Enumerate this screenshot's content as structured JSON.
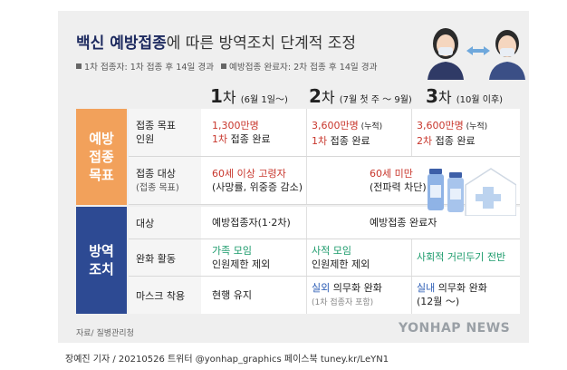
{
  "title": {
    "bold": "백신 예방접종",
    "rest": "에 따른 방역조치 단계적 조정"
  },
  "notes": [
    "1차 접종자: 1차 접종 후 14일 경과",
    "예방접종 완료자: 2차 접종 후 14일 경과"
  ],
  "phases": [
    {
      "big": "1",
      "suffix": "차",
      "period": "(6월 1일～)"
    },
    {
      "big": "2",
      "suffix": "차",
      "period": "(7월 첫 주 ～ 9월)"
    },
    {
      "big": "3",
      "suffix": "차",
      "period": "(10월 이후)"
    }
  ],
  "categories": {
    "vaccination_goal": "예방\n접종\n목표",
    "quarantine": "방역\n조치"
  },
  "rows": {
    "goal": {
      "label": "접종 목표\n인원",
      "p1_a": "1,300만명",
      "p1_b": "1차",
      "p1_c": " 접종 완료",
      "p2_a": "3,600만명",
      "p2_a2": " (누적)",
      "p2_b": "1차",
      "p2_c": " 접종 완료",
      "p3_a": "3,600만명",
      "p3_a2": " (누적)",
      "p3_b": "2차",
      "p3_c": " 접종 완료"
    },
    "target": {
      "label": "접종 대상",
      "sub": "(접종 목표)",
      "p1_a": "60세 이상 고령자",
      "p1_b": "(사망률, 위중증 감소)",
      "p23_a": "60세 미만",
      "p23_b": "(전파력 차단)"
    },
    "subject": {
      "label": "대상",
      "p1": "예방접종자(1·2차)",
      "p23": "예방접종 완료자"
    },
    "relief": {
      "label": "완화 활동",
      "p1_a": "가족 모임",
      "p1_b": "인원제한 제외",
      "p2_a": "사적 모임",
      "p2_b": "인원제한 제외",
      "p3_a": "사회적 거리두기 전반"
    },
    "mask": {
      "label": "마스크 착용",
      "p1": "현행 유지",
      "p2_a": "실외",
      "p2_b": " 의무화 완화",
      "p2_c": "(1차 접종자 포함)",
      "p3_a": "실내",
      "p3_b": " 의무화 완화",
      "p3_c": "(12월 ～)"
    }
  },
  "source": "자료/ 질병관리청",
  "byline": "장예진 기자 / 20210526 트위터 @yonhap_graphics  페이스북 tuney.kr/LeYN1",
  "watermark": "YONHAP NEWS",
  "colors": {
    "orange": "#f2a15b",
    "navy": "#2d4a93",
    "red": "#c8372d",
    "green": "#1a9a6a"
  }
}
